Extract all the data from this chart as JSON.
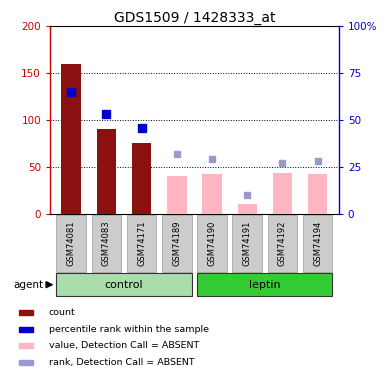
{
  "title": "GDS1509 / 1428333_at",
  "categories": [
    "GSM74081",
    "GSM74083",
    "GSM74171",
    "GSM74189",
    "GSM74190",
    "GSM74191",
    "GSM74192",
    "GSM74194"
  ],
  "bar_values": [
    160,
    90,
    75,
    40,
    42,
    10,
    43,
    42
  ],
  "bar_present": [
    true,
    true,
    true,
    false,
    false,
    false,
    false,
    false
  ],
  "bar_color_present": "#8B1010",
  "bar_color_absent": "#FFB6C1",
  "rank_values": [
    65,
    53,
    46,
    null,
    null,
    null,
    null,
    null
  ],
  "rank_absent_values": [
    null,
    null,
    null,
    32,
    29,
    10,
    27,
    28
  ],
  "rank_color_present": "#0000CC",
  "rank_color_absent": "#9999CC",
  "ylim_left": [
    0,
    200
  ],
  "ylim_right": [
    0,
    100
  ],
  "yticks_left": [
    0,
    50,
    100,
    150,
    200
  ],
  "yticks_right": [
    0,
    25,
    50,
    75,
    100
  ],
  "ytick_labels_left": [
    "0",
    "50",
    "100",
    "150",
    "200"
  ],
  "ytick_labels_right": [
    "0",
    "25",
    "50",
    "75",
    "100%"
  ],
  "group_labels": [
    "control",
    "leptin"
  ],
  "group_ranges": [
    [
      0,
      3
    ],
    [
      4,
      7
    ]
  ],
  "group_color_light": "#AADDAA",
  "group_color_dark": "#33CC33",
  "agent_label": "agent",
  "legend_items": [
    {
      "color": "#8B1010",
      "label": "count"
    },
    {
      "color": "#0000CC",
      "label": "percentile rank within the sample"
    },
    {
      "color": "#FFB6C1",
      "label": "value, Detection Call = ABSENT"
    },
    {
      "color": "#9999CC",
      "label": "rank, Detection Call = ABSENT"
    }
  ],
  "background_color": "#ffffff",
  "left_axis_color": "#CC0000",
  "right_axis_color": "#0000CC",
  "cell_color": "#CCCCCC"
}
